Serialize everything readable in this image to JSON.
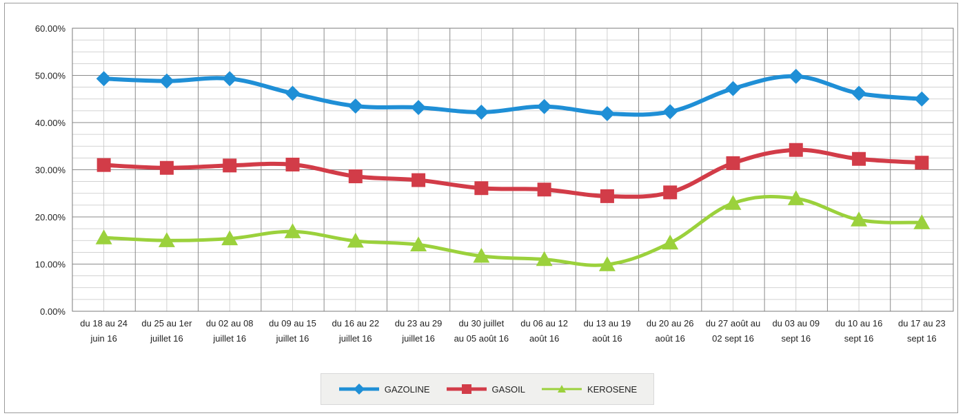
{
  "chart_data": {
    "type": "line",
    "ylim": [
      0,
      60
    ],
    "y_ticks": [
      "0.00%",
      "10.00%",
      "20.00%",
      "30.00%",
      "40.00%",
      "50.00%",
      "60.00%"
    ],
    "grid": true,
    "legend_position": "bottom",
    "categories": [
      [
        "du 18 au 24",
        "juin 16"
      ],
      [
        "du 25 au 1er",
        "juillet 16"
      ],
      [
        "du 02 au 08",
        "juillet 16"
      ],
      [
        "du 09 au 15",
        "juillet 16"
      ],
      [
        "du 16 au 22",
        "juillet 16"
      ],
      [
        "du 23 au 29",
        "juillet 16"
      ],
      [
        "du 30 juillet",
        "au 05 août 16"
      ],
      [
        "du 06 au 12",
        "août 16"
      ],
      [
        "du 13 au 19",
        "août 16"
      ],
      [
        "du 20 au 26",
        "août 16"
      ],
      [
        "du 27 août au",
        "02 sept 16"
      ],
      [
        "du 03 au 09",
        "sept 16"
      ],
      [
        "du 10 au 16",
        "sept 16"
      ],
      [
        "du 17 au 23",
        "sept 16"
      ]
    ],
    "series": [
      {
        "name": "GAZOLINE",
        "color": "#1f8fd6",
        "marker": "diamond",
        "values": [
          49.3,
          48.8,
          49.3,
          46.2,
          43.5,
          43.2,
          42.2,
          43.4,
          41.9,
          42.3,
          47.2,
          49.8,
          46.2,
          45.0
        ]
      },
      {
        "name": "GASOIL",
        "color": "#d23c48",
        "marker": "square",
        "values": [
          31.0,
          30.4,
          30.9,
          31.1,
          28.6,
          27.8,
          26.1,
          25.8,
          24.4,
          25.2,
          31.4,
          34.2,
          32.3,
          31.5
        ]
      },
      {
        "name": "KEROSENE",
        "color": "#9bd13c",
        "marker": "triangle",
        "values": [
          15.6,
          15.0,
          15.4,
          16.9,
          14.9,
          14.1,
          11.7,
          11.0,
          9.9,
          14.5,
          22.9,
          23.9,
          19.4,
          18.8
        ]
      }
    ]
  }
}
